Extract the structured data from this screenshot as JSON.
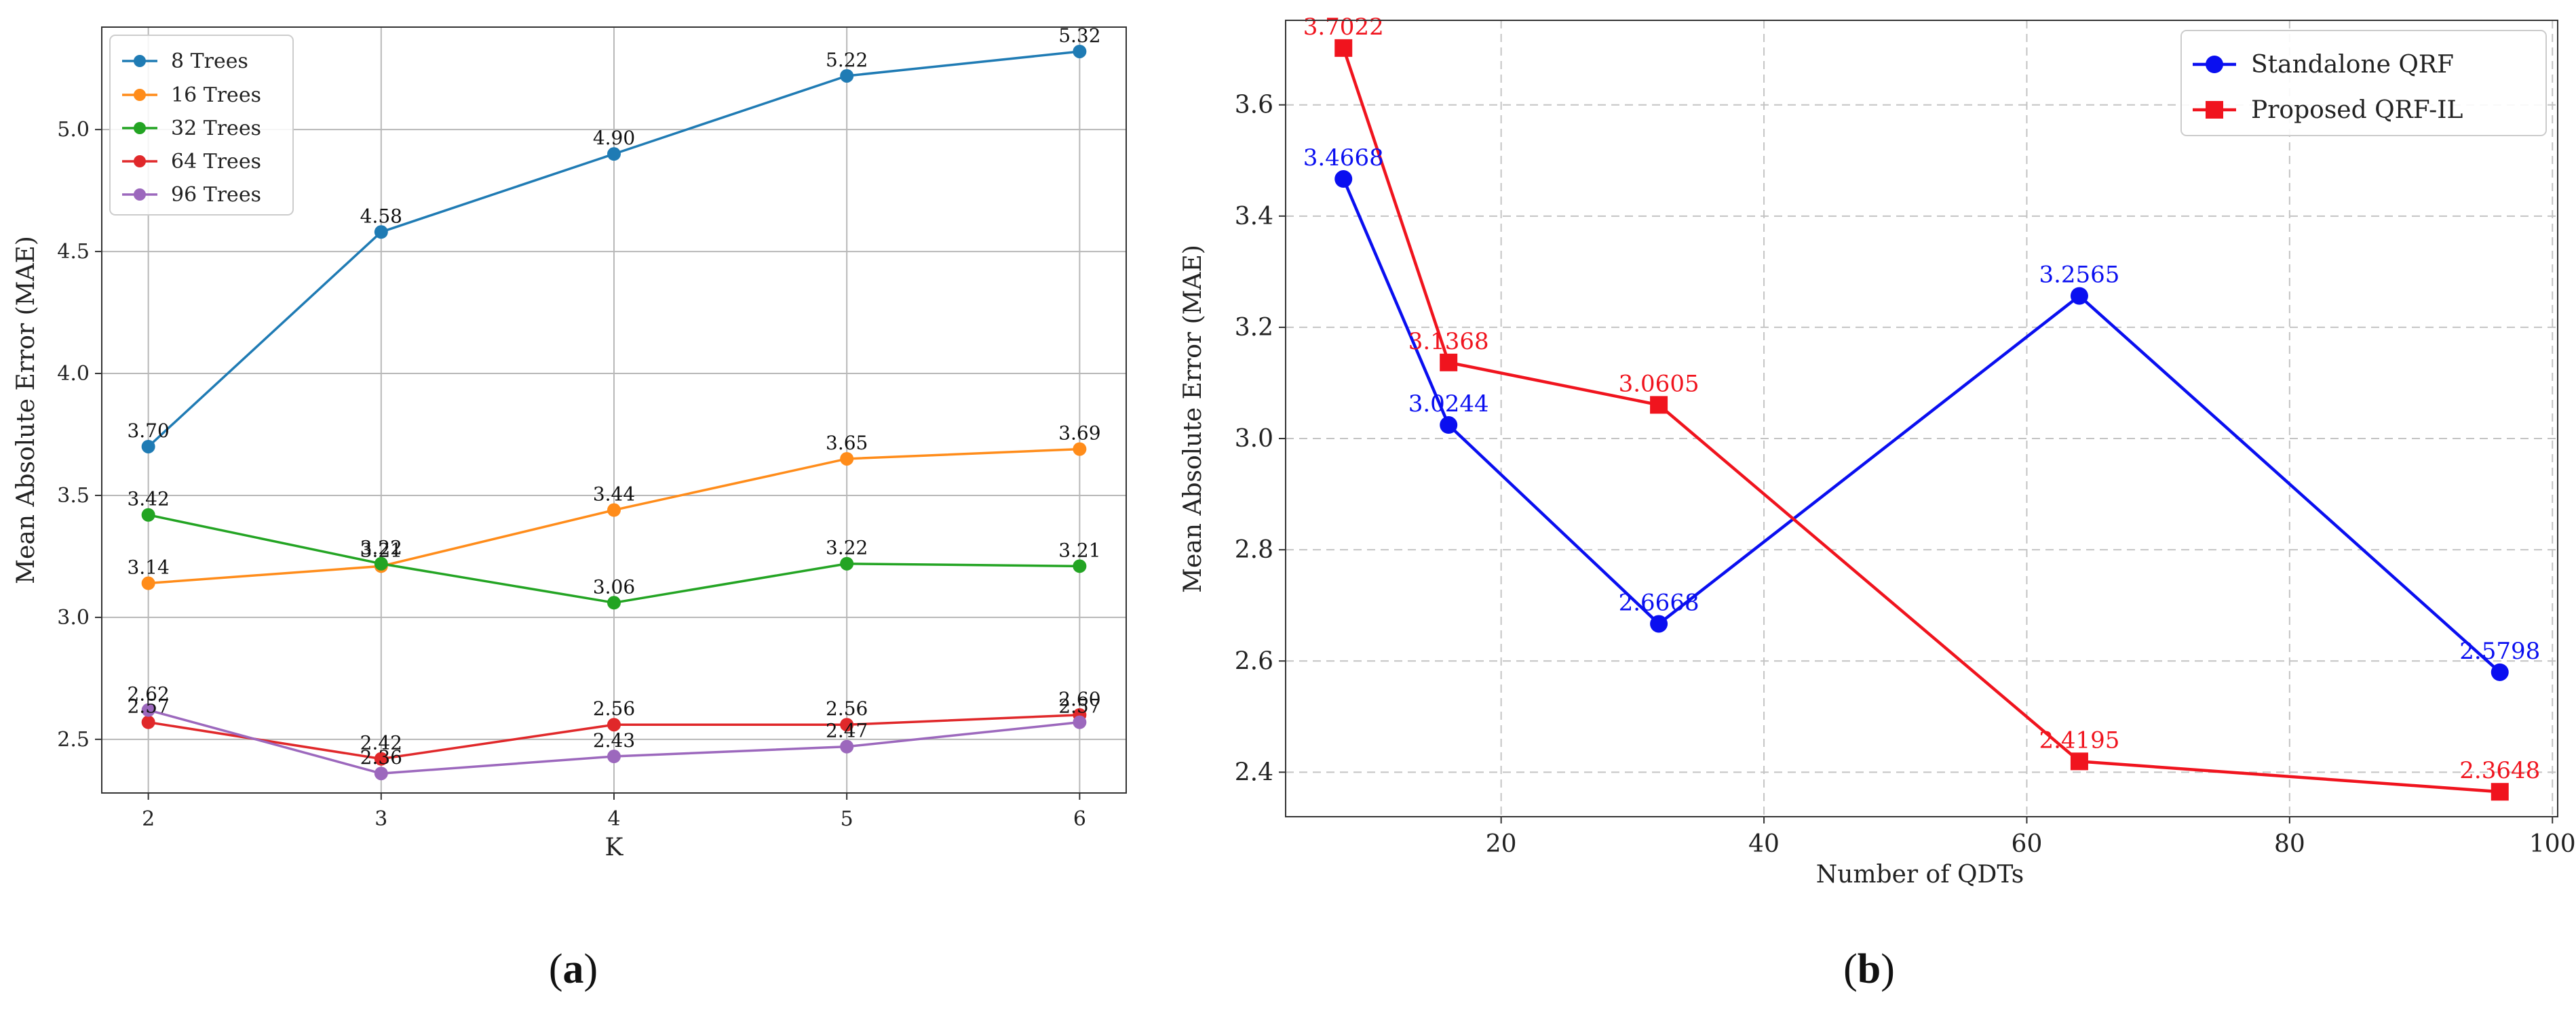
{
  "chart_data": [
    {
      "type": "line",
      "caption": {
        "open": "(",
        "letter": "a",
        "close": ")"
      },
      "xlabel": "K",
      "ylabel": "Mean Absolute Error (MAE)",
      "x": [
        2,
        3,
        4,
        5,
        6
      ],
      "xlim": [
        1.8,
        6.2
      ],
      "ylim": [
        2.28,
        5.42
      ],
      "xticks": [
        "2",
        "3",
        "4",
        "5",
        "6"
      ],
      "yticks": [
        "2.5",
        "3.0",
        "3.5",
        "4.0",
        "4.5",
        "5.0"
      ],
      "ytick_values": [
        2.5,
        3.0,
        3.5,
        4.0,
        4.5,
        5.0
      ],
      "grid": true,
      "legend_position": "upper-left",
      "series": [
        {
          "name": "8 Trees",
          "color": "#1f7bb4",
          "marker": "circle",
          "values": [
            3.7,
            4.58,
            4.9,
            5.22,
            5.32
          ],
          "labels": [
            "3.70",
            "4.58",
            "4.90",
            "5.22",
            "5.32"
          ]
        },
        {
          "name": "16 Trees",
          "color": "#ff8c1a",
          "marker": "circle",
          "values": [
            3.14,
            3.21,
            3.44,
            3.65,
            3.69
          ],
          "labels": [
            "3.14",
            "3.21",
            "3.44",
            "3.65",
            "3.69"
          ]
        },
        {
          "name": "32 Trees",
          "color": "#23a423",
          "marker": "circle",
          "values": [
            3.42,
            3.22,
            3.06,
            3.22,
            3.21
          ],
          "labels": [
            "3.42",
            "3.22",
            "3.06",
            "3.22",
            "3.21"
          ]
        },
        {
          "name": "64 Trees",
          "color": "#e0282a",
          "marker": "circle",
          "values": [
            2.57,
            2.42,
            2.56,
            2.56,
            2.6
          ],
          "labels": [
            "2.57",
            "2.42",
            "2.56",
            "2.56",
            "2.60"
          ]
        },
        {
          "name": "96 Trees",
          "color": "#9c68bd",
          "marker": "circle",
          "values": [
            2.62,
            2.36,
            2.43,
            2.47,
            2.57
          ],
          "labels": [
            "2.62",
            "2.36",
            "2.43",
            "2.47",
            "2.57"
          ]
        }
      ]
    },
    {
      "type": "line",
      "caption": {
        "open": "(",
        "letter": "b",
        "close": ")"
      },
      "xlabel": "Number of QDTs",
      "ylabel": "Mean Absolute Error (MAE)",
      "x": [
        8,
        16,
        32,
        64,
        96
      ],
      "xlim": [
        3.6,
        100.4
      ],
      "ylim": [
        2.32,
        3.752
      ],
      "xticks": [
        "20",
        "40",
        "60",
        "80",
        "100"
      ],
      "xtick_values": [
        20,
        40,
        60,
        80,
        100
      ],
      "yticks": [
        "2.4",
        "2.6",
        "2.8",
        "3.0",
        "3.2",
        "3.4",
        "3.6"
      ],
      "ytick_values": [
        2.4,
        2.6,
        2.8,
        3.0,
        3.2,
        3.4,
        3.6
      ],
      "grid": "dashed",
      "legend_position": "upper-right",
      "series": [
        {
          "name": "Standalone QRF",
          "color": "#0a0ff0",
          "marker": "circle",
          "values": [
            3.4668,
            3.0244,
            2.6668,
            3.2565,
            2.5798
          ],
          "labels": [
            "3.4668",
            "3.0244",
            "2.6668",
            "3.2565",
            "2.5798"
          ]
        },
        {
          "name": "Proposed QRF-IL",
          "color": "#f0141e",
          "marker": "square",
          "values": [
            3.7022,
            3.1368,
            3.0605,
            2.4195,
            2.3648
          ],
          "labels": [
            "3.7022",
            "3.1368",
            "3.0605",
            "2.4195",
            "2.3648"
          ]
        }
      ]
    }
  ]
}
